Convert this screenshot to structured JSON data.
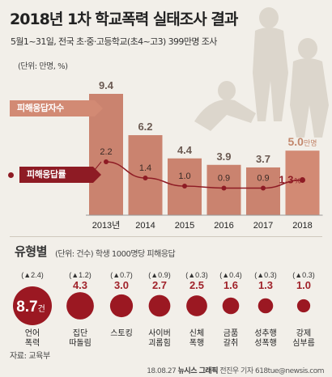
{
  "header": {
    "title_prefix": "2018년 1차 ",
    "title_bold": "학교폭력 실태조사 결과",
    "subtitle": "5월1~31일, 전국 초·중·고등학교(초4~고3) 399만명 조사",
    "unit": "(단위: 만명, %)"
  },
  "legend": {
    "cases_label": "피해응답자수",
    "rate_label": "피해응답률"
  },
  "chart_data": [
    {
      "type": "bar",
      "categories": [
        "2013년",
        "2014",
        "2015",
        "2016",
        "2017",
        "2018"
      ],
      "series": [
        {
          "name": "피해응답자수",
          "values": [
            9.4,
            6.2,
            4.4,
            3.9,
            3.7,
            5.0
          ],
          "unit": "만명"
        },
        {
          "name": "피해응답률",
          "values": [
            2.2,
            1.4,
            1.0,
            0.9,
            0.9,
            1.3
          ],
          "unit": "%"
        }
      ],
      "bar_value_labels": [
        "9.4",
        "6.2",
        "4.4",
        "3.9",
        "3.7",
        "5.0"
      ],
      "bar_last_unit": "만명",
      "rate_value_labels": [
        "2.2",
        "1.4",
        "1.0",
        "0.9",
        "0.9",
        "1.3"
      ],
      "rate_last_unit": "%",
      "colors": {
        "bar": "#ca836f",
        "bar_highlight": "#d28a74",
        "rate_line": "#8e1b24",
        "value_label": "#6b5a52",
        "highlight_label": "#c2876c"
      }
    },
    {
      "type": "bubble",
      "title": "유형별",
      "note": "(단위: 건수) 학생 1000명당 피해응답",
      "categories": [
        "언어 폭력",
        "집단 따돌림",
        "스토킹",
        "사이버 괴롭힘",
        "신체 폭행",
        "금품 갈취",
        "성추행 성폭행",
        "강제 심부름"
      ],
      "category_lines": [
        [
          "언어",
          "폭력"
        ],
        [
          "집단",
          "따돌림"
        ],
        [
          "스토킹"
        ],
        [
          "사이버",
          "괴롭힘"
        ],
        [
          "신체",
          "폭행"
        ],
        [
          "금품",
          "갈취"
        ],
        [
          "성추행",
          "성폭행"
        ],
        [
          "강제",
          "심부름"
        ]
      ],
      "values": [
        8.7,
        4.3,
        3.0,
        2.7,
        2.5,
        1.6,
        1.3,
        1.0
      ],
      "value_labels": [
        "8.7",
        "4.3",
        "3.0",
        "2.7",
        "2.5",
        "1.6",
        "1.3",
        "1.0"
      ],
      "first_unit": "건",
      "changes": [
        "(▲2.4)",
        "(▲1.2)",
        "(▲0.7)",
        "(▲0.9)",
        "(▲0.3)",
        "(▲0.4)",
        "(▲0.3)",
        "(▲0.3)"
      ],
      "colors": {
        "bubble": "#9b1822",
        "value": "#a0222a",
        "change": "#333333"
      }
    }
  ],
  "footer": {
    "source": "자료: 교육부",
    "date": "18.08.27",
    "agency": "뉴시스 그래픽",
    "author": "전진우 기자 618tue@newsis.com"
  }
}
